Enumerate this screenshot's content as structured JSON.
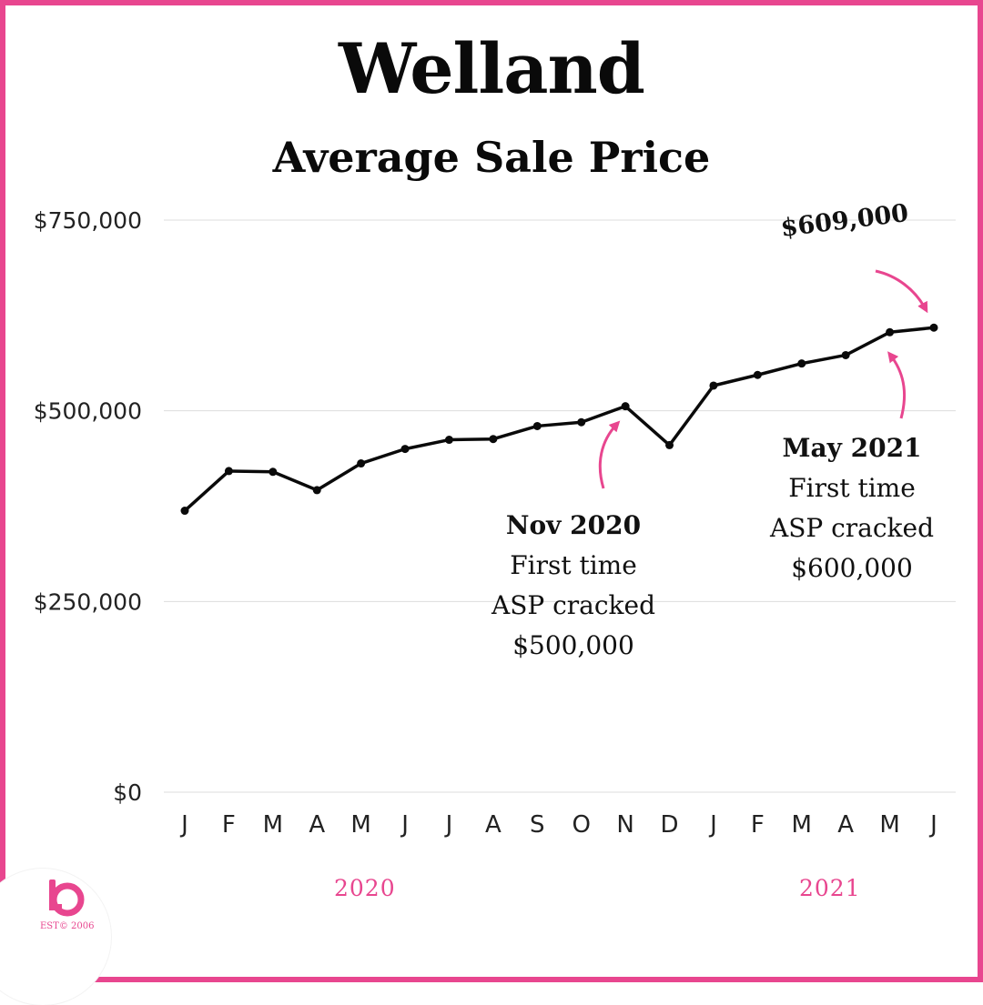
{
  "colors": {
    "accent": "#e8468f",
    "line": "#0a0a0a",
    "grid": "#dddddd"
  },
  "header": {
    "title": "Welland",
    "subtitle": "Average Sale Price"
  },
  "annotations": {
    "nov2020": {
      "head": "Nov 2020",
      "line1": "First time",
      "line2": "ASP cracked",
      "line3": "$500,000"
    },
    "may2021": {
      "head": "May 2021",
      "line1": "First time",
      "line2": "ASP cracked",
      "line3": "$600,000"
    },
    "peak_label": "$609,000"
  },
  "years": {
    "first": "2020",
    "second": "2021"
  },
  "logo": {
    "icon": "brand-logo-icon",
    "est": "EST© 2006"
  },
  "chart_data": {
    "type": "line",
    "title": "Average Sale Price",
    "categories": [
      "J",
      "F",
      "M",
      "A",
      "M",
      "J",
      "J",
      "A",
      "S",
      "O",
      "N",
      "D",
      "J",
      "F",
      "M",
      "A",
      "M",
      "J"
    ],
    "series": [
      {
        "values": [
          369000,
          421000,
          420000,
          396000,
          431000,
          450000,
          462000,
          463000,
          480000,
          485000,
          506000,
          455000,
          533000,
          547000,
          562000,
          573000,
          603000,
          609000
        ]
      }
    ],
    "y_ticks": [
      0,
      250000,
      500000,
      750000
    ],
    "y_tick_labels": [
      "$0",
      "$250,000",
      "$500,000",
      "$750,000"
    ],
    "ylim": [
      0,
      750000
    ],
    "grid": true,
    "legend": "none"
  }
}
